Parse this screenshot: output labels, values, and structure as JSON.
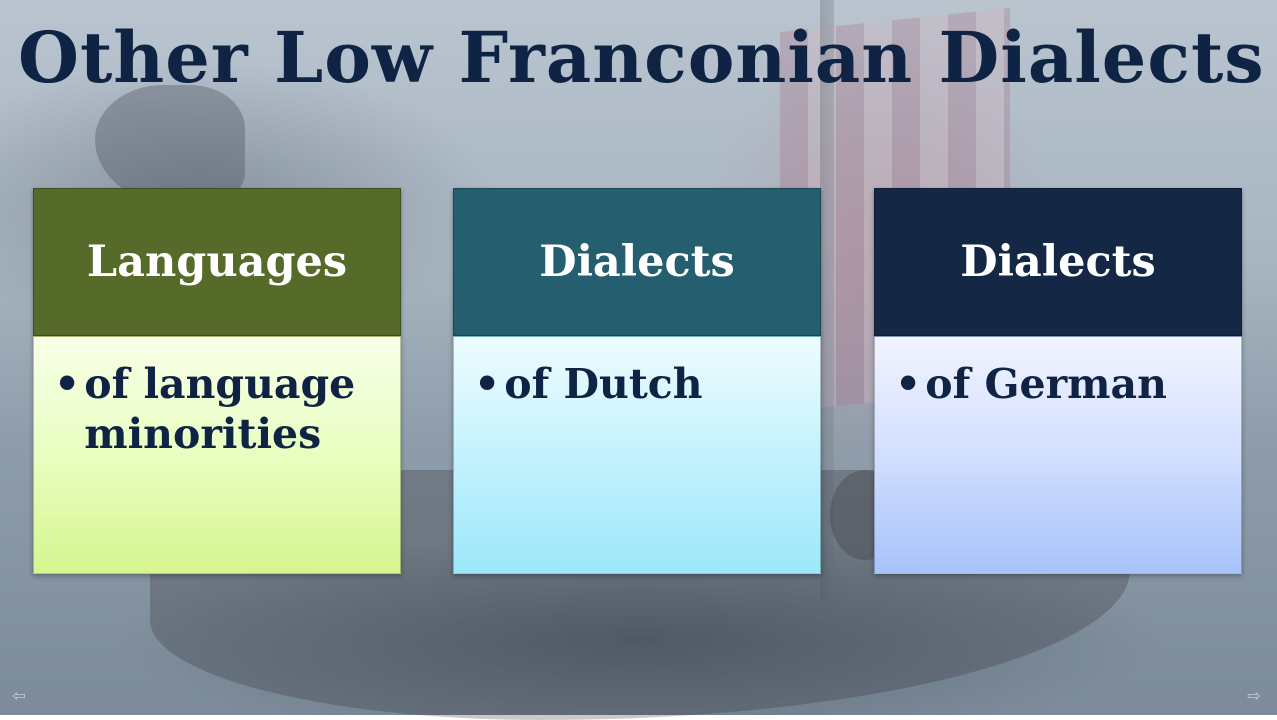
{
  "slide": {
    "title": "Other Low Franconian Dialects",
    "cards": [
      {
        "heading": "Languages",
        "bullet": "of language minorities",
        "head_color": "#566a2a"
      },
      {
        "heading": "Dialects",
        "bullet": "of Dutch",
        "head_color": "#255e6e"
      },
      {
        "heading": "Dialects",
        "bullet": "of German",
        "head_color": "#142845"
      }
    ],
    "bullet_glyph": "•",
    "title_color": "#0f2444"
  },
  "nav": {
    "prev_icon": "arrow-left-icon",
    "next_icon": "arrow-right-icon"
  }
}
